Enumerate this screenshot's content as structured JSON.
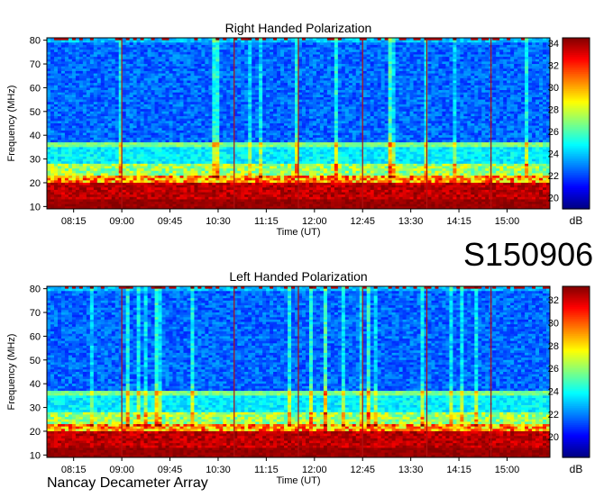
{
  "chart_data": [
    {
      "type": "heatmap",
      "title": "Right Handed Polarization",
      "xlabel": "Time (UT)",
      "ylabel": "Frequency (MHz)",
      "x_tick_labels": [
        "08:15",
        "09:00",
        "09:45",
        "10:30",
        "11:15",
        "12:00",
        "12:45",
        "13:30",
        "14:15",
        "15:00"
      ],
      "y_ticks": [
        10,
        20,
        30,
        40,
        50,
        60,
        70,
        80
      ],
      "ylim": [
        9,
        81
      ],
      "colorbar": {
        "label": "dB",
        "ticks": [
          20,
          22,
          24,
          26,
          28,
          30,
          32,
          34
        ],
        "range": [
          19,
          34.5
        ]
      },
      "vertical_markers": [
        "09:00",
        "10:45",
        "11:45",
        "12:45",
        "13:45",
        "14:45"
      ]
    },
    {
      "type": "heatmap",
      "title": "Left Handed Polarization",
      "xlabel": "Time (UT)",
      "ylabel": "Frequency (MHz)",
      "x_tick_labels": [
        "08:15",
        "09:00",
        "09:45",
        "10:30",
        "11:15",
        "12:00",
        "12:45",
        "13:30",
        "14:15",
        "15:00"
      ],
      "y_ticks": [
        10,
        20,
        30,
        40,
        50,
        60,
        70,
        80
      ],
      "ylim": [
        9,
        81
      ],
      "colorbar": {
        "label": "dB",
        "ticks": [
          20,
          22,
          24,
          26,
          28,
          30,
          32
        ],
        "range": [
          18.2,
          33.2
        ]
      },
      "vertical_markers": [
        "09:00",
        "10:45",
        "11:45",
        "12:45",
        "13:45",
        "14:45"
      ]
    }
  ],
  "header": {
    "dataset_label": "S150906"
  },
  "footer": {
    "instrument": "Nancay Decameter Array"
  }
}
